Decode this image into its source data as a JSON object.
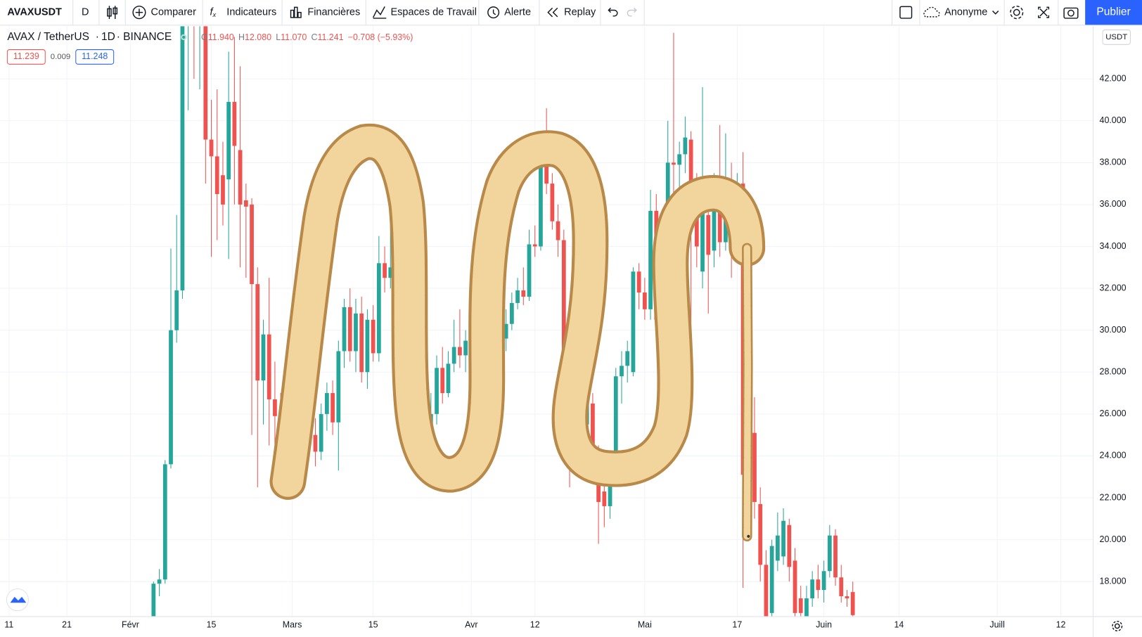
{
  "toolbar": {
    "symbol": "AVAXUSDT",
    "interval": "D",
    "compare": "Comparer",
    "indicators": "Indicateurs",
    "financials": "Financières",
    "workspaces": "Espaces de Travail",
    "alert": "Alerte",
    "replay": "Replay",
    "account": "Anonyme",
    "publish": "Publier"
  },
  "legend": {
    "pair": "AVAX / TetherUS",
    "timeframe": "1D",
    "exchange": "BINANCE",
    "ohlc": [
      {
        "label": "O",
        "value": "11.940"
      },
      {
        "label": "H",
        "value": "12.080"
      },
      {
        "label": "L",
        "value": "11.070"
      },
      {
        "label": "C",
        "value": "11.241"
      }
    ],
    "change": "−0.708 (−5.93%)",
    "bid": "11.239",
    "spread": "0.009",
    "ask": "11.248"
  },
  "chart_data": {
    "type": "candlestick",
    "currency": "USDT",
    "grid": true,
    "up_color": "#26a69a",
    "down_color": "#ef5350",
    "xlim": [
      9.43,
      198.6
    ],
    "ylim": [
      16.33,
      44.51
    ],
    "xticks": [
      11,
      21,
      {
        "value": 32,
        "label": "Févr"
      },
      {
        "value": 46,
        "label": "15"
      },
      {
        "value": 60,
        "label": "Mars"
      },
      {
        "value": 74,
        "label": "15"
      },
      {
        "value": 91,
        "label": "Avr"
      },
      {
        "value": 102,
        "label": "12"
      },
      {
        "value": 121,
        "label": "Mai"
      },
      {
        "value": 137,
        "label": "17"
      },
      {
        "value": 152,
        "label": "Juin"
      },
      {
        "value": 165,
        "label": "14"
      },
      {
        "value": 182,
        "label": "Juill"
      },
      {
        "value": 193,
        "label": "12"
      }
    ],
    "yticks": [
      {
        "value": 18,
        "label": "18.000"
      },
      {
        "value": 20,
        "label": "20.000"
      },
      {
        "value": 22,
        "label": "22.000"
      },
      {
        "value": 24,
        "label": "24.000"
      },
      {
        "value": 26,
        "label": "26.000"
      },
      {
        "value": 28,
        "label": "28.000"
      },
      {
        "value": 30,
        "label": "30.000"
      },
      {
        "value": 32,
        "label": "32.000"
      },
      {
        "value": 34,
        "label": "34.000"
      },
      {
        "value": 36,
        "label": "36.000"
      },
      {
        "value": 38,
        "label": "38.000"
      },
      {
        "value": 40,
        "label": "40.000"
      },
      {
        "value": 42,
        "label": "42.000"
      }
    ],
    "candles": [
      {
        "x": 36,
        "o": 16.0,
        "h": 18.0,
        "l": 15.5,
        "c": 17.9
      },
      {
        "x": 37,
        "o": 17.9,
        "h": 18.6,
        "l": 17.3,
        "c": 18.1
      },
      {
        "x": 38,
        "o": 18.1,
        "h": 23.8,
        "l": 17.9,
        "c": 23.6
      },
      {
        "x": 39,
        "o": 23.6,
        "h": 33.9,
        "l": 23.4,
        "c": 30.0
      },
      {
        "x": 40,
        "o": 30.0,
        "h": 35.5,
        "l": 29.4,
        "c": 31.9
      },
      {
        "x": 41,
        "o": 31.9,
        "h": 55.0,
        "l": 31.5,
        "c": 47.0
      },
      {
        "x": 42,
        "o": 47.0,
        "h": 59.0,
        "l": 40.5,
        "c": 50.0
      },
      {
        "x": 43,
        "o": 50.0,
        "h": 55.0,
        "l": 42.0,
        "c": 46.0
      },
      {
        "x": 44,
        "o": 46.0,
        "h": 52.0,
        "l": 41.5,
        "c": 49.0
      },
      {
        "x": 45,
        "o": 48.0,
        "h": 50.0,
        "l": 37.0,
        "c": 39.1
      },
      {
        "x": 46,
        "o": 39.1,
        "h": 41.0,
        "l": 33.5,
        "c": 38.3
      },
      {
        "x": 47,
        "o": 38.3,
        "h": 41.5,
        "l": 34.3,
        "c": 36.5
      },
      {
        "x": 48,
        "o": 37.4,
        "h": 39.0,
        "l": 35.0,
        "c": 36.0
      },
      {
        "x": 49,
        "o": 37.2,
        "h": 43.3,
        "l": 33.4,
        "c": 40.9
      },
      {
        "x": 50,
        "o": 40.9,
        "h": 44.0,
        "l": 36.0,
        "c": 38.8
      },
      {
        "x": 51,
        "o": 38.6,
        "h": 42.6,
        "l": 33.0,
        "c": 36.0
      },
      {
        "x": 52,
        "o": 36.2,
        "h": 37.0,
        "l": 32.5,
        "c": 35.9
      },
      {
        "x": 53,
        "o": 36.0,
        "h": 36.3,
        "l": 25.0,
        "c": 32.2
      },
      {
        "x": 54,
        "o": 32.2,
        "h": 33.0,
        "l": 22.5,
        "c": 27.6
      },
      {
        "x": 55,
        "o": 27.6,
        "h": 30.5,
        "l": 25.5,
        "c": 29.8
      },
      {
        "x": 56,
        "o": 29.8,
        "h": 32.5,
        "l": 24.5,
        "c": 26.7
      },
      {
        "x": 57,
        "o": 26.7,
        "h": 28.5,
        "l": 23.5,
        "c": 25.9
      },
      {
        "x": 58,
        "o": 25.9,
        "h": 27.0,
        "l": 24.0,
        "c": 25.7
      },
      {
        "x": 59,
        "o": 25.7,
        "h": 26.5,
        "l": 22.1,
        "c": 26.0
      },
      {
        "x": 60,
        "o": 26.0,
        "h": 28.0,
        "l": 24.8,
        "c": 27.5
      },
      {
        "x": 61,
        "o": 27.5,
        "h": 28.2,
        "l": 25.5,
        "c": 26.2
      },
      {
        "x": 62,
        "o": 26.2,
        "h": 27.8,
        "l": 25.8,
        "c": 27.0
      },
      {
        "x": 63,
        "o": 27.0,
        "h": 27.5,
        "l": 24.5,
        "c": 24.8
      },
      {
        "x": 64,
        "o": 25.0,
        "h": 25.8,
        "l": 23.5,
        "c": 24.2
      },
      {
        "x": 65,
        "o": 24.2,
        "h": 26.5,
        "l": 23.8,
        "c": 26.0
      },
      {
        "x": 66,
        "o": 26.0,
        "h": 27.5,
        "l": 25.2,
        "c": 27.0
      },
      {
        "x": 67,
        "o": 27.0,
        "h": 27.6,
        "l": 25.0,
        "c": 25.6
      },
      {
        "x": 68,
        "o": 25.6,
        "h": 29.5,
        "l": 23.3,
        "c": 29.0
      },
      {
        "x": 69,
        "o": 29.0,
        "h": 31.5,
        "l": 28.2,
        "c": 31.1
      },
      {
        "x": 70,
        "o": 31.1,
        "h": 32.0,
        "l": 28.5,
        "c": 29.0
      },
      {
        "x": 71,
        "o": 29.0,
        "h": 31.5,
        "l": 28.0,
        "c": 30.8
      },
      {
        "x": 72,
        "o": 30.8,
        "h": 31.6,
        "l": 27.5,
        "c": 28.0
      },
      {
        "x": 73,
        "o": 28.0,
        "h": 31.0,
        "l": 27.2,
        "c": 30.5
      },
      {
        "x": 74,
        "o": 30.5,
        "h": 31.2,
        "l": 28.5,
        "c": 28.9
      },
      {
        "x": 75,
        "o": 28.9,
        "h": 34.5,
        "l": 28.5,
        "c": 33.2
      },
      {
        "x": 76,
        "o": 33.2,
        "h": 34.0,
        "l": 31.8,
        "c": 32.5
      },
      {
        "x": 77,
        "o": 32.5,
        "h": 35.5,
        "l": 32.0,
        "c": 33.0
      },
      {
        "x": 78,
        "o": 33.0,
        "h": 38.7,
        "l": 30.5,
        "c": 31.0
      },
      {
        "x": 79,
        "o": 31.0,
        "h": 32.0,
        "l": 29.0,
        "c": 29.5
      },
      {
        "x": 80,
        "o": 29.5,
        "h": 30.5,
        "l": 27.5,
        "c": 28.0
      },
      {
        "x": 81,
        "o": 28.0,
        "h": 29.0,
        "l": 26.8,
        "c": 27.5
      },
      {
        "x": 82,
        "o": 28.5,
        "h": 29.2,
        "l": 26.0,
        "c": 26.8
      },
      {
        "x": 83,
        "o": 26.8,
        "h": 27.5,
        "l": 24.8,
        "c": 25.5
      },
      {
        "x": 84,
        "o": 25.5,
        "h": 27.0,
        "l": 25.0,
        "c": 26.0
      },
      {
        "x": 85,
        "o": 26.0,
        "h": 28.8,
        "l": 25.5,
        "c": 28.2
      },
      {
        "x": 86,
        "o": 28.2,
        "h": 29.2,
        "l": 26.5,
        "c": 27.0
      },
      {
        "x": 87,
        "o": 27.0,
        "h": 29.0,
        "l": 26.8,
        "c": 28.4
      },
      {
        "x": 88,
        "o": 28.4,
        "h": 30.5,
        "l": 28.0,
        "c": 29.2
      },
      {
        "x": 89,
        "o": 29.2,
        "h": 31.0,
        "l": 28.2,
        "c": 28.8
      },
      {
        "x": 90,
        "o": 28.8,
        "h": 30.0,
        "l": 28.0,
        "c": 29.5
      },
      {
        "x": 91,
        "o": 29.5,
        "h": 30.0,
        "l": 28.0,
        "c": 28.6
      },
      {
        "x": 92,
        "o": 28.6,
        "h": 30.2,
        "l": 28.2,
        "c": 29.5
      },
      {
        "x": 93,
        "o": 29.5,
        "h": 31.0,
        "l": 29.0,
        "c": 30.5
      },
      {
        "x": 94,
        "o": 30.5,
        "h": 32.0,
        "l": 30.0,
        "c": 31.5
      },
      {
        "x": 95,
        "o": 31.5,
        "h": 32.5,
        "l": 30.5,
        "c": 30.9
      },
      {
        "x": 96,
        "o": 31.5,
        "h": 32.2,
        "l": 29.2,
        "c": 29.6
      },
      {
        "x": 97,
        "o": 29.6,
        "h": 31.0,
        "l": 29.0,
        "c": 30.3
      },
      {
        "x": 98,
        "o": 30.3,
        "h": 31.8,
        "l": 30.0,
        "c": 31.3
      },
      {
        "x": 99,
        "o": 31.3,
        "h": 32.5,
        "l": 31.0,
        "c": 31.9
      },
      {
        "x": 100,
        "o": 31.9,
        "h": 33.0,
        "l": 31.2,
        "c": 31.6
      },
      {
        "x": 101,
        "o": 31.6,
        "h": 34.8,
        "l": 31.4,
        "c": 34.1
      },
      {
        "x": 102,
        "o": 34.1,
        "h": 35.0,
        "l": 33.5,
        "c": 34.0
      },
      {
        "x": 103,
        "o": 34.0,
        "h": 38.4,
        "l": 33.8,
        "c": 38.0
      },
      {
        "x": 104,
        "o": 38.0,
        "h": 40.6,
        "l": 36.5,
        "c": 37.0
      },
      {
        "x": 105,
        "o": 37.0,
        "h": 37.5,
        "l": 34.8,
        "c": 35.2
      },
      {
        "x": 106,
        "o": 35.2,
        "h": 36.0,
        "l": 33.5,
        "c": 34.3
      },
      {
        "x": 107,
        "o": 34.3,
        "h": 34.8,
        "l": 28.5,
        "c": 29.0
      },
      {
        "x": 108,
        "o": 29.0,
        "h": 29.5,
        "l": 22.5,
        "c": 27.5
      },
      {
        "x": 109,
        "o": 27.5,
        "h": 28.5,
        "l": 26.0,
        "c": 28.0
      },
      {
        "x": 110,
        "o": 28.5,
        "h": 29.0,
        "l": 25.0,
        "c": 25.5
      },
      {
        "x": 111,
        "o": 25.5,
        "h": 27.0,
        "l": 24.5,
        "c": 26.5
      },
      {
        "x": 112,
        "o": 26.5,
        "h": 27.0,
        "l": 23.0,
        "c": 23.5
      },
      {
        "x": 113,
        "o": 23.5,
        "h": 24.5,
        "l": 19.8,
        "c": 21.8
      },
      {
        "x": 114,
        "o": 22.3,
        "h": 23.0,
        "l": 20.6,
        "c": 21.6
      },
      {
        "x": 115,
        "o": 21.6,
        "h": 24.0,
        "l": 21.0,
        "c": 23.4
      },
      {
        "x": 116,
        "o": 23.4,
        "h": 28.2,
        "l": 23.0,
        "c": 27.8
      },
      {
        "x": 117,
        "o": 27.8,
        "h": 29.0,
        "l": 26.5,
        "c": 28.3
      },
      {
        "x": 118,
        "o": 28.3,
        "h": 29.5,
        "l": 27.5,
        "c": 29.0
      },
      {
        "x": 119,
        "o": 28.0,
        "h": 33.0,
        "l": 27.8,
        "c": 32.8
      },
      {
        "x": 120,
        "o": 32.8,
        "h": 33.2,
        "l": 31.0,
        "c": 31.8
      },
      {
        "x": 121,
        "o": 31.8,
        "h": 32.5,
        "l": 30.5,
        "c": 31.0
      },
      {
        "x": 122,
        "o": 31.0,
        "h": 36.7,
        "l": 30.5,
        "c": 35.7
      },
      {
        "x": 123,
        "o": 35.7,
        "h": 36.5,
        "l": 30.0,
        "c": 30.5
      },
      {
        "x": 124,
        "o": 30.5,
        "h": 35.0,
        "l": 30.0,
        "c": 34.5
      },
      {
        "x": 125,
        "o": 34.5,
        "h": 40.0,
        "l": 34.0,
        "c": 38.0
      },
      {
        "x": 126,
        "o": 38.0,
        "h": 44.2,
        "l": 36.5,
        "c": 37.9
      },
      {
        "x": 127,
        "o": 37.9,
        "h": 39.0,
        "l": 36.8,
        "c": 38.4
      },
      {
        "x": 128,
        "o": 38.4,
        "h": 40.2,
        "l": 37.5,
        "c": 39.2
      },
      {
        "x": 129,
        "o": 39.1,
        "h": 39.5,
        "l": 29.7,
        "c": 35.2
      },
      {
        "x": 130,
        "o": 36.0,
        "h": 37.5,
        "l": 33.0,
        "c": 34.0
      },
      {
        "x": 131,
        "o": 32.8,
        "h": 41.6,
        "l": 32.0,
        "c": 35.8
      },
      {
        "x": 132,
        "o": 35.5,
        "h": 36.5,
        "l": 30.8,
        "c": 33.6
      },
      {
        "x": 133,
        "o": 33.8,
        "h": 37.5,
        "l": 33.0,
        "c": 36.9
      },
      {
        "x": 134,
        "o": 36.7,
        "h": 39.8,
        "l": 33.5,
        "c": 34.2
      },
      {
        "x": 135,
        "o": 34.2,
        "h": 39.4,
        "l": 33.8,
        "c": 37.0
      },
      {
        "x": 136,
        "o": 37.0,
        "h": 38.0,
        "l": 32.5,
        "c": 34.1
      },
      {
        "x": 137,
        "o": 34.1,
        "h": 37.5,
        "l": 33.8,
        "c": 37.0
      },
      {
        "x": 138,
        "o": 37.0,
        "h": 38.5,
        "l": 17.7,
        "c": 23.1
      },
      {
        "x": 139,
        "o": 23.1,
        "h": 25.5,
        "l": 20.0,
        "c": 25.1
      },
      {
        "x": 140,
        "o": 25.1,
        "h": 26.8,
        "l": 21.0,
        "c": 21.8
      },
      {
        "x": 141,
        "o": 21.7,
        "h": 22.5,
        "l": 18.0,
        "c": 18.8
      },
      {
        "x": 142,
        "o": 18.8,
        "h": 19.5,
        "l": 15.0,
        "c": 15.5
      },
      {
        "x": 143,
        "o": 16.5,
        "h": 20.0,
        "l": 16.0,
        "c": 19.7
      },
      {
        "x": 144,
        "o": 19.0,
        "h": 21.3,
        "l": 18.5,
        "c": 20.2
      },
      {
        "x": 145,
        "o": 19.2,
        "h": 21.5,
        "l": 18.8,
        "c": 20.9
      },
      {
        "x": 146,
        "o": 20.7,
        "h": 21.0,
        "l": 18.0,
        "c": 18.7
      },
      {
        "x": 147,
        "o": 19.0,
        "h": 19.6,
        "l": 16.0,
        "c": 16.5
      },
      {
        "x": 148,
        "o": 17.2,
        "h": 17.8,
        "l": 16.0,
        "c": 16.5
      },
      {
        "x": 149,
        "o": 16.2,
        "h": 17.8,
        "l": 16.0,
        "c": 17.2
      },
      {
        "x": 150,
        "o": 17.2,
        "h": 18.5,
        "l": 16.8,
        "c": 18.1
      },
      {
        "x": 151,
        "o": 18.1,
        "h": 18.8,
        "l": 17.2,
        "c": 17.6
      },
      {
        "x": 152,
        "o": 17.6,
        "h": 19.0,
        "l": 17.0,
        "c": 18.5
      },
      {
        "x": 153,
        "o": 18.5,
        "h": 20.7,
        "l": 18.2,
        "c": 20.2
      },
      {
        "x": 154,
        "o": 20.2,
        "h": 20.5,
        "l": 17.8,
        "c": 18.2
      },
      {
        "x": 155,
        "o": 18.2,
        "h": 18.8,
        "l": 17.0,
        "c": 17.3
      },
      {
        "x": 156,
        "o": 17.3,
        "h": 17.6,
        "l": 16.8,
        "c": 17.2
      },
      {
        "x": 157,
        "o": 17.5,
        "h": 18.0,
        "l": 16.2,
        "c": 16.4
      }
    ]
  }
}
